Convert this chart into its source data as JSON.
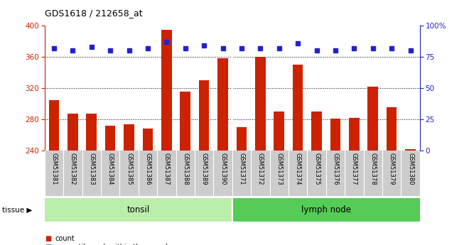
{
  "title": "GDS1618 / 212658_at",
  "samples": [
    "GSM51381",
    "GSM51382",
    "GSM51383",
    "GSM51384",
    "GSM51385",
    "GSM51386",
    "GSM51387",
    "GSM51388",
    "GSM51389",
    "GSM51390",
    "GSM51371",
    "GSM51372",
    "GSM51373",
    "GSM51374",
    "GSM51375",
    "GSM51376",
    "GSM51377",
    "GSM51378",
    "GSM51379",
    "GSM51380"
  ],
  "counts": [
    305,
    287,
    287,
    272,
    274,
    268,
    395,
    316,
    330,
    358,
    270,
    360,
    290,
    350,
    290,
    281,
    282,
    322,
    296,
    242
  ],
  "percentile": [
    82,
    80,
    83,
    80,
    80,
    82,
    87,
    82,
    84,
    82,
    82,
    82,
    82,
    86,
    80,
    80,
    82,
    82,
    82,
    80
  ],
  "tonsil_count": 10,
  "lymph_count": 10,
  "tonsil_label": "tonsil",
  "lymph_label": "lymph node",
  "tissue_label": "tissue",
  "ylim_left": [
    240,
    400
  ],
  "ylim_right": [
    0,
    100
  ],
  "yticks_left": [
    240,
    280,
    320,
    360,
    400
  ],
  "yticks_right": [
    0,
    25,
    50,
    75,
    100
  ],
  "bar_color": "#cc2200",
  "dot_color": "#2222cc",
  "tonsil_bg": "#bbeeaa",
  "lymph_bg": "#55cc55",
  "xlabel_area_bg": "#cccccc",
  "grid_color": "#000000",
  "legend_count_color": "#cc2200",
  "legend_pct_color": "#2222cc"
}
